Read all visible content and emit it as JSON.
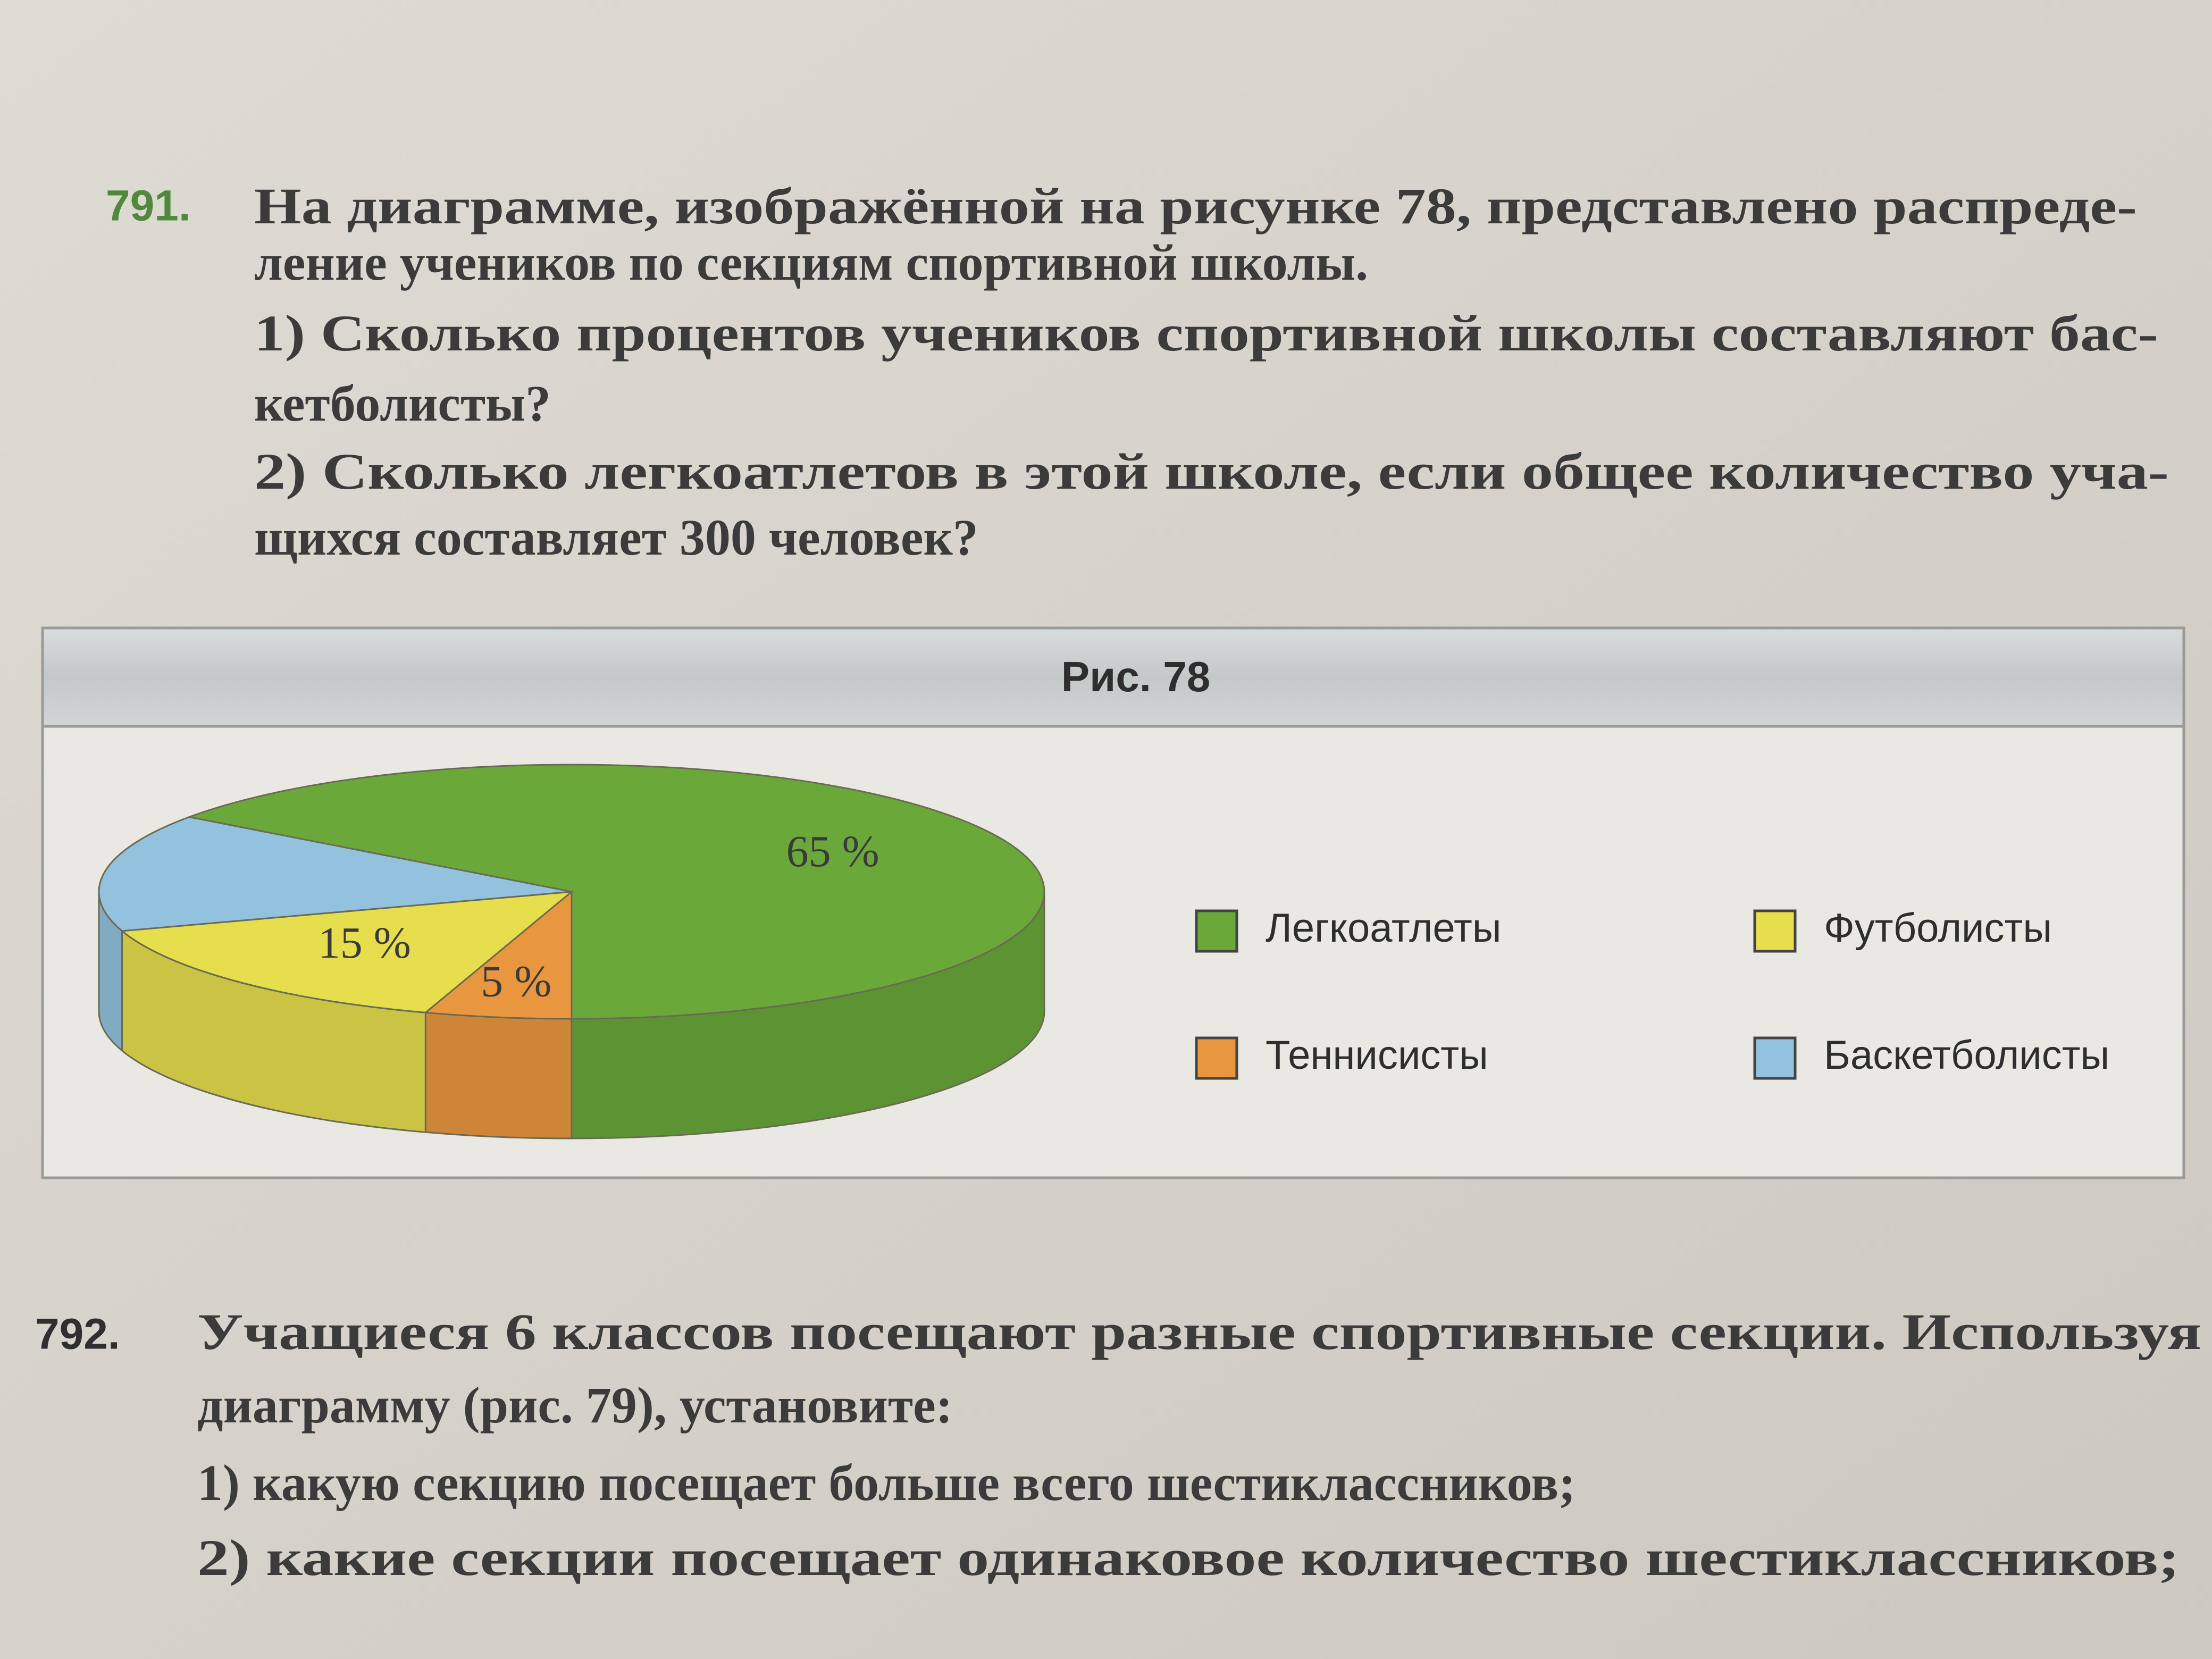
{
  "problems": [
    {
      "number": "791.",
      "lines": [
        "На диаграмме, изображённой на рисунке 78, представлено распреде-",
        "ление учеников по секциям спортивной школы."
      ],
      "items": [
        {
          "lines": [
            "1) Сколько процентов учеников спортивной школы составляют бас-",
            "кетболисты?"
          ]
        },
        {
          "lines": [
            "2) Сколько легкоатлетов в этой школе, если общее количество уча-",
            "щихся составляет 300 человек?"
          ]
        }
      ]
    },
    {
      "number": "792.",
      "lines": [
        "Учащиеся 6 классов посещают разные спортивные секции. Используя",
        "диаграмму (рис. 79), установите:"
      ],
      "items": [
        {
          "lines": [
            "1) какую секцию посещает больше всего шестиклассников;"
          ]
        },
        {
          "lines": [
            "2) какие секции посещает одинаковое количество шестиклассников;"
          ]
        }
      ]
    }
  ],
  "chart_data": {
    "type": "pie",
    "title": "Рис. 78",
    "categories": [
      "Легкоатлеты",
      "Теннисисты",
      "Футболисты",
      "Баскетболисты"
    ],
    "values": [
      65,
      5,
      15,
      15
    ],
    "value_labels": [
      "65 %",
      "5 %",
      "15 %",
      null
    ],
    "colors": [
      "#6aa83a",
      "#e9973e",
      "#e6de4c",
      "#93c2de"
    ],
    "legend": "right"
  }
}
